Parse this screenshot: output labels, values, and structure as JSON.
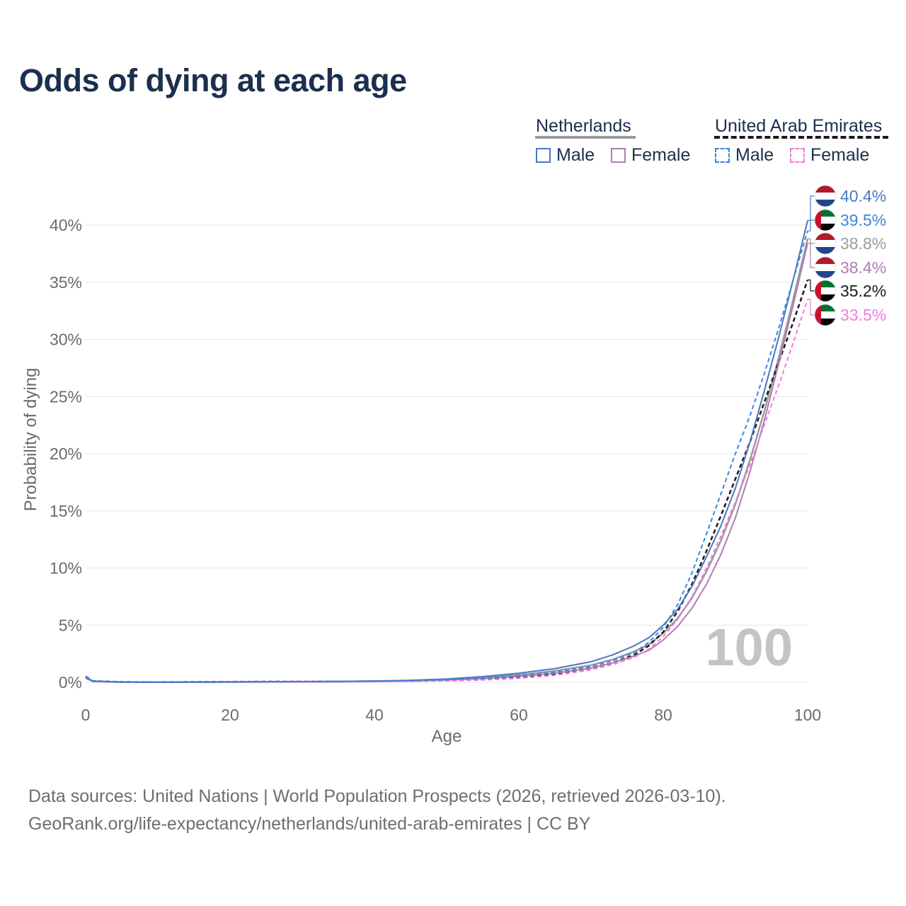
{
  "title": "Odds of dying at each age",
  "legend": {
    "netherlands": {
      "name": "Netherlands",
      "male": "Male",
      "female": "Female"
    },
    "uae": {
      "name": "United Arab Emirates",
      "male": "Male",
      "female": "Female"
    }
  },
  "colors": {
    "nl_male": "#4a78c4",
    "nl_female": "#b07ab8",
    "nl_total": "#9b9b9b",
    "uae_male": "#3a86e0",
    "uae_female": "#f07cdc",
    "uae_total": "#1a1a1a",
    "title": "#1b2f4e"
  },
  "chart_data": {
    "type": "line",
    "title": "Odds of dying at each age",
    "xlabel": "Age",
    "ylabel": "Probability of dying",
    "xlim": [
      0,
      100
    ],
    "ylim": [
      -2,
      45
    ],
    "xticks": [
      0,
      20,
      40,
      60,
      80,
      100
    ],
    "yticks": [
      0,
      5,
      10,
      15,
      20,
      25,
      30,
      35,
      40
    ],
    "ytick_labels": [
      "0%",
      "5%",
      "10%",
      "15%",
      "20%",
      "25%",
      "30%",
      "35%",
      "40%"
    ],
    "watermark_year": "100",
    "x": [
      0,
      1,
      5,
      10,
      15,
      20,
      25,
      30,
      35,
      40,
      45,
      50,
      55,
      60,
      65,
      70,
      73,
      76,
      78,
      80,
      82,
      84,
      86,
      88,
      90,
      92,
      94,
      96,
      98,
      100
    ],
    "series": [
      {
        "key": "nl_male",
        "name": "Netherlands Male",
        "dashed": false,
        "values": [
          0.45,
          0.1,
          0.02,
          0.01,
          0.02,
          0.04,
          0.05,
          0.06,
          0.08,
          0.12,
          0.18,
          0.3,
          0.5,
          0.8,
          1.2,
          1.8,
          2.4,
          3.2,
          3.9,
          5.0,
          6.4,
          8.4,
          11.0,
          13.7,
          17.0,
          21.0,
          25.5,
          30.2,
          35.2,
          40.4
        ],
        "end_label": "40.4%",
        "flag": "nl"
      },
      {
        "key": "uae_male",
        "name": "United Arab Emirates Male",
        "dashed": true,
        "values": [
          0.55,
          0.12,
          0.03,
          0.02,
          0.04,
          0.06,
          0.07,
          0.07,
          0.08,
          0.1,
          0.14,
          0.22,
          0.35,
          0.6,
          0.9,
          1.4,
          1.9,
          2.6,
          3.5,
          4.8,
          6.8,
          9.6,
          13.0,
          16.5,
          20.0,
          23.3,
          27.0,
          31.0,
          35.2,
          39.5
        ],
        "end_label": "39.5%",
        "flag": "uae"
      },
      {
        "key": "nl_total",
        "name": "Netherlands Total",
        "dashed": false,
        "values": [
          0.4,
          0.09,
          0.02,
          0.01,
          0.02,
          0.03,
          0.04,
          0.05,
          0.07,
          0.1,
          0.15,
          0.24,
          0.4,
          0.65,
          1.0,
          1.5,
          2.0,
          2.7,
          3.3,
          4.3,
          5.6,
          7.4,
          9.7,
          12.4,
          15.6,
          19.4,
          23.7,
          28.4,
          33.5,
          38.8
        ],
        "end_label": "38.8%",
        "flag": "nl"
      },
      {
        "key": "nl_female",
        "name": "Netherlands Female",
        "dashed": false,
        "values": [
          0.35,
          0.08,
          0.01,
          0.01,
          0.02,
          0.02,
          0.03,
          0.04,
          0.05,
          0.08,
          0.12,
          0.2,
          0.32,
          0.52,
          0.8,
          1.25,
          1.7,
          2.3,
          2.8,
          3.7,
          4.9,
          6.5,
          8.6,
          11.2,
          14.4,
          18.4,
          22.9,
          27.9,
          33.0,
          38.4
        ],
        "end_label": "38.4%",
        "flag": "nl"
      },
      {
        "key": "uae_total",
        "name": "United Arab Emirates Total",
        "dashed": true,
        "values": [
          0.5,
          0.11,
          0.03,
          0.02,
          0.03,
          0.05,
          0.06,
          0.06,
          0.07,
          0.09,
          0.12,
          0.18,
          0.28,
          0.48,
          0.75,
          1.25,
          1.7,
          2.4,
          3.2,
          4.4,
          6.2,
          8.6,
          11.5,
          14.6,
          17.8,
          21.0,
          24.5,
          28.0,
          31.5,
          35.2
        ],
        "end_label": "35.2%",
        "flag": "uae"
      },
      {
        "key": "uae_female",
        "name": "United Arab Emirates Female",
        "dashed": true,
        "values": [
          0.45,
          0.1,
          0.02,
          0.01,
          0.02,
          0.03,
          0.04,
          0.04,
          0.05,
          0.07,
          0.09,
          0.13,
          0.2,
          0.35,
          0.6,
          1.1,
          1.55,
          2.2,
          2.9,
          4.0,
          5.5,
          7.5,
          10.0,
          12.8,
          15.8,
          19.0,
          22.5,
          26.0,
          29.7,
          33.5
        ],
        "end_label": "33.5%",
        "flag": "uae"
      }
    ]
  },
  "sources": {
    "line1": "Data sources: United Nations | World Population Prospects (2026, retrieved 2026-03-10).",
    "line2": "GeoRank.org/life-expectancy/netherlands/united-arab-emirates | CC BY"
  }
}
